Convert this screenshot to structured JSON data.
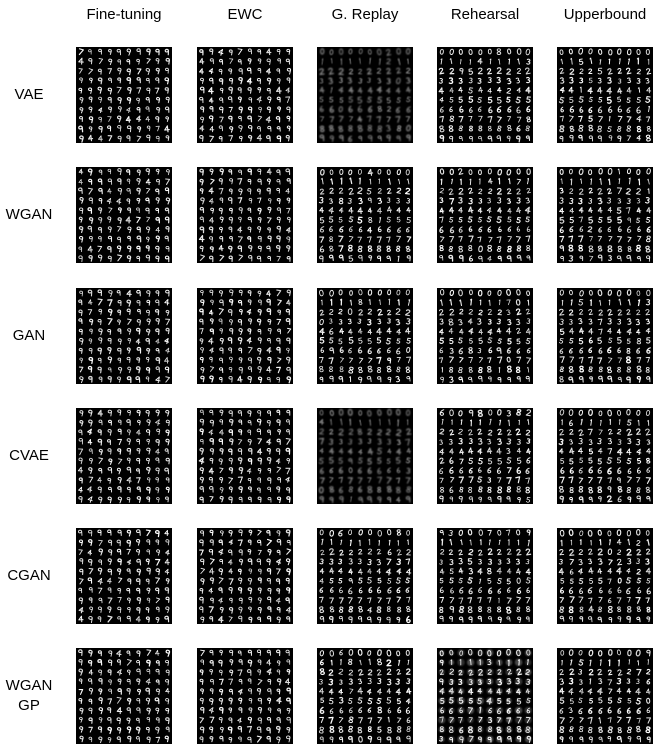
{
  "columns": [
    "Fine-tuning",
    "EWC",
    "G. Replay",
    "Rehearsal",
    "Upperbound"
  ],
  "rows": [
    {
      "label": "VAE"
    },
    {
      "label": "WGAN"
    },
    {
      "label": "GAN"
    },
    {
      "label": "CVAE"
    },
    {
      "label": "CGAN"
    },
    {
      "label": "WGAN\nGP"
    }
  ],
  "grid": {
    "cell_description": "10x10 grid of generated MNIST digit samples",
    "background_color": "#000000",
    "digit_color": "#ffffff",
    "content": [
      [
        "9s",
        "9s",
        "blurry rows 0-9",
        "rows 0-9",
        "rows 0-9"
      ],
      [
        "9s",
        "9s",
        "rows 0-9",
        "rows 0-9",
        "rows 0-9"
      ],
      [
        "9s",
        "9s",
        "rows 0-9",
        "rows 0-9",
        "rows 0-9"
      ],
      [
        "9s",
        "9s",
        "blurry rows 0-9",
        "rows 0-9",
        "rows 0-9"
      ],
      [
        "9s",
        "9s",
        "rows 0-9",
        "rows 0-9",
        "rows 0-9"
      ],
      [
        "9s",
        "9s",
        "rows 0-9",
        "noisy rows 0-9",
        "rows 0-9"
      ]
    ]
  }
}
